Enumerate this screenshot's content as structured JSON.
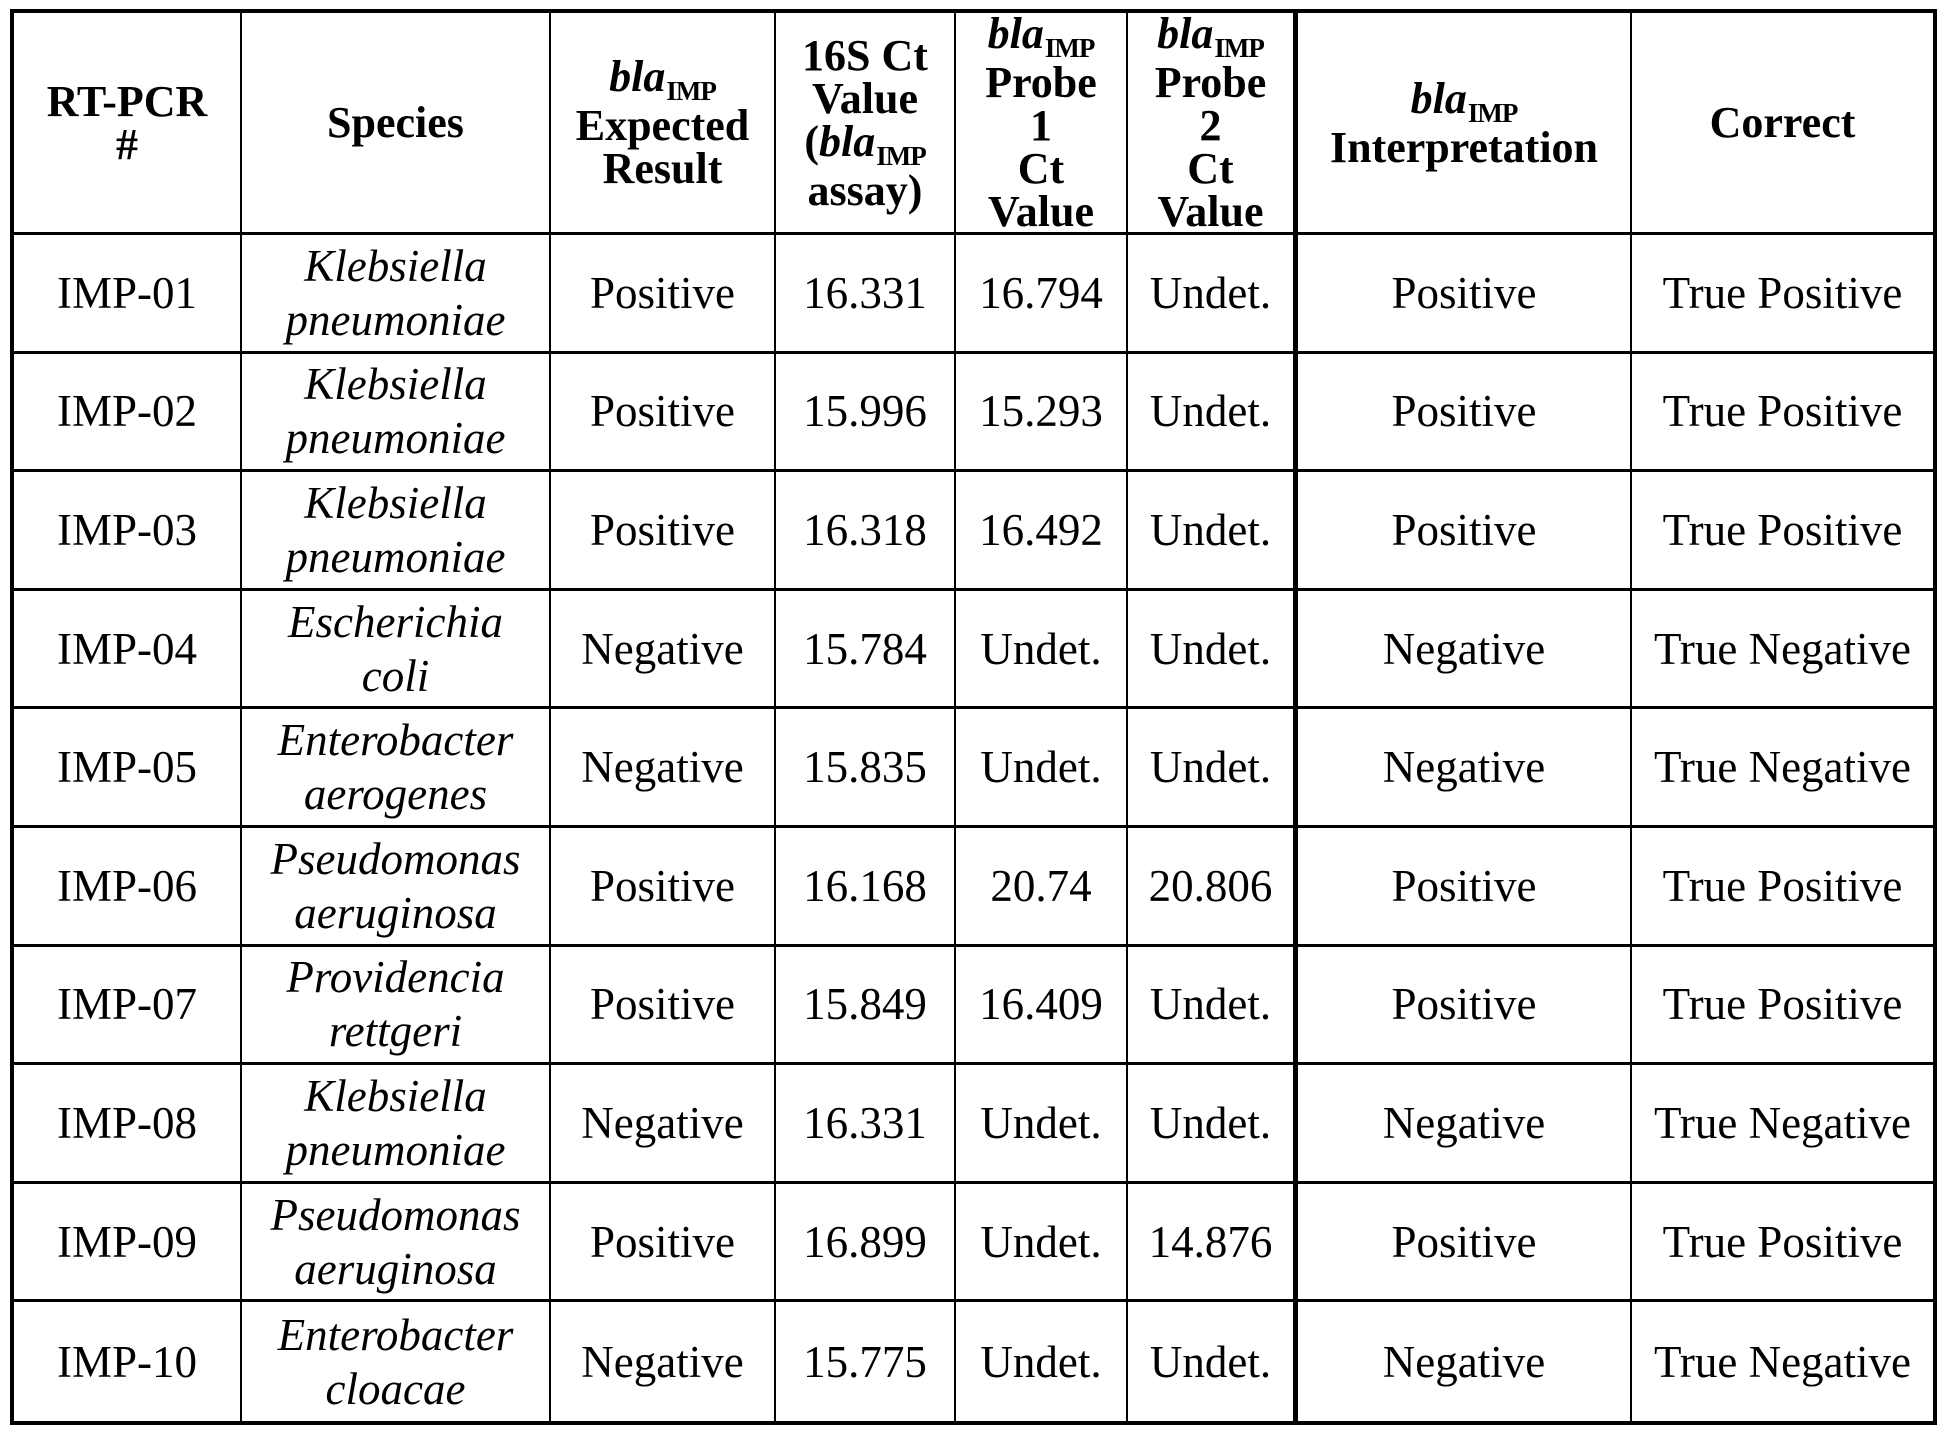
{
  "colors": {
    "background": "#ffffff",
    "text": "#000000",
    "border": "#000000"
  },
  "table": {
    "description": "RT-PCR blaIMP assay results table",
    "column_keys": [
      "rt_pcr_number",
      "species",
      "expected_result",
      "ct_16s",
      "probe1_ct",
      "probe2_ct",
      "interpretation",
      "correct"
    ],
    "headers": [
      {
        "key": "rt-pcr-number",
        "lines": [
          [
            {
              "t": "RT-PCR"
            }
          ],
          [
            {
              "t": "#"
            }
          ]
        ]
      },
      {
        "key": "species",
        "lines": [
          [
            {
              "t": "Species"
            }
          ]
        ]
      },
      {
        "key": "bla-imp-expected-result",
        "lines": [
          [
            {
              "t": "bla",
              "s": "gene"
            },
            {
              "t": "IMP",
              "s": "sub"
            }
          ],
          [
            {
              "t": "Expected"
            }
          ],
          [
            {
              "t": "Result"
            }
          ]
        ]
      },
      {
        "key": "16s-ct-value-bla-imp-assay",
        "lines": [
          [
            {
              "t": "16S Ct"
            }
          ],
          [
            {
              "t": "Value"
            }
          ],
          [
            {
              "t": "("
            },
            {
              "t": "bla",
              "s": "gene"
            },
            {
              "t": "IMP",
              "s": "sub"
            }
          ],
          [
            {
              "t": "assay)"
            }
          ]
        ]
      },
      {
        "key": "bla-imp-probe-1-ct-value",
        "lines": [
          [
            {
              "t": "bla",
              "s": "gene"
            },
            {
              "t": "IMP",
              "s": "sub"
            }
          ],
          [
            {
              "t": "Probe"
            }
          ],
          [
            {
              "t": "1"
            }
          ],
          [
            {
              "t": "Ct"
            }
          ],
          [
            {
              "t": "Value"
            }
          ]
        ]
      },
      {
        "key": "bla-imp-probe-2-ct-value",
        "lines": [
          [
            {
              "t": "bla",
              "s": "gene"
            },
            {
              "t": "IMP",
              "s": "sub"
            }
          ],
          [
            {
              "t": "Probe"
            }
          ],
          [
            {
              "t": "2"
            }
          ],
          [
            {
              "t": "Ct"
            }
          ],
          [
            {
              "t": "Value"
            }
          ]
        ]
      },
      {
        "key": "bla-imp-interpretation",
        "lines": [
          [
            {
              "t": "bla",
              "s": "gene"
            },
            {
              "t": "IMP",
              "s": "sub"
            }
          ],
          [
            {
              "t": "Interpretation"
            }
          ]
        ]
      },
      {
        "key": "correct",
        "lines": [
          [
            {
              "t": "Correct"
            }
          ]
        ]
      }
    ],
    "rows": [
      {
        "rt_pcr_number": "IMP-01",
        "species_lines": [
          "Klebsiella",
          "pneumoniae"
        ],
        "expected_result": "Positive",
        "ct_16s": "16.331",
        "probe1_ct": "16.794",
        "probe2_ct": "Undet.",
        "interpretation": "Positive",
        "correct": "True Positive"
      },
      {
        "rt_pcr_number": "IMP-02",
        "species_lines": [
          "Klebsiella",
          "pneumoniae"
        ],
        "expected_result": "Positive",
        "ct_16s": "15.996",
        "probe1_ct": "15.293",
        "probe2_ct": "Undet.",
        "interpretation": "Positive",
        "correct": "True Positive"
      },
      {
        "rt_pcr_number": "IMP-03",
        "species_lines": [
          "Klebsiella",
          "pneumoniae"
        ],
        "expected_result": "Positive",
        "ct_16s": "16.318",
        "probe1_ct": "16.492",
        "probe2_ct": "Undet.",
        "interpretation": "Positive",
        "correct": "True Positive"
      },
      {
        "rt_pcr_number": "IMP-04",
        "species_lines": [
          "Escherichia",
          "coli"
        ],
        "expected_result": "Negative",
        "ct_16s": "15.784",
        "probe1_ct": "Undet.",
        "probe2_ct": "Undet.",
        "interpretation": "Negative",
        "correct": "True Negative"
      },
      {
        "rt_pcr_number": "IMP-05",
        "species_lines": [
          "Enterobacter",
          "aerogenes"
        ],
        "expected_result": "Negative",
        "ct_16s": "15.835",
        "probe1_ct": "Undet.",
        "probe2_ct": "Undet.",
        "interpretation": "Negative",
        "correct": "True Negative"
      },
      {
        "rt_pcr_number": "IMP-06",
        "species_lines": [
          "Pseudomonas",
          "aeruginosa"
        ],
        "expected_result": "Positive",
        "ct_16s": "16.168",
        "probe1_ct": "20.74",
        "probe2_ct": "20.806",
        "interpretation": "Positive",
        "correct": "True Positive"
      },
      {
        "rt_pcr_number": "IMP-07",
        "species_lines": [
          "Providencia",
          "rettgeri"
        ],
        "expected_result": "Positive",
        "ct_16s": "15.849",
        "probe1_ct": "16.409",
        "probe2_ct": "Undet.",
        "interpretation": "Positive",
        "correct": "True Positive"
      },
      {
        "rt_pcr_number": "IMP-08",
        "species_lines": [
          "Klebsiella",
          "pneumoniae"
        ],
        "expected_result": "Negative",
        "ct_16s": "16.331",
        "probe1_ct": "Undet.",
        "probe2_ct": "Undet.",
        "interpretation": "Negative",
        "correct": "True Negative"
      },
      {
        "rt_pcr_number": "IMP-09",
        "species_lines": [
          "Pseudomonas",
          "aeruginosa"
        ],
        "expected_result": "Positive",
        "ct_16s": "16.899",
        "probe1_ct": "Undet.",
        "probe2_ct": "14.876",
        "interpretation": "Positive",
        "correct": "True Positive"
      },
      {
        "rt_pcr_number": "IMP-10",
        "species_lines": [
          "Enterobacter",
          "cloacae"
        ],
        "expected_result": "Negative",
        "ct_16s": "15.775",
        "probe1_ct": "Undet.",
        "probe2_ct": "Undet.",
        "interpretation": "Negative",
        "correct": "True Negative"
      }
    ]
  }
}
